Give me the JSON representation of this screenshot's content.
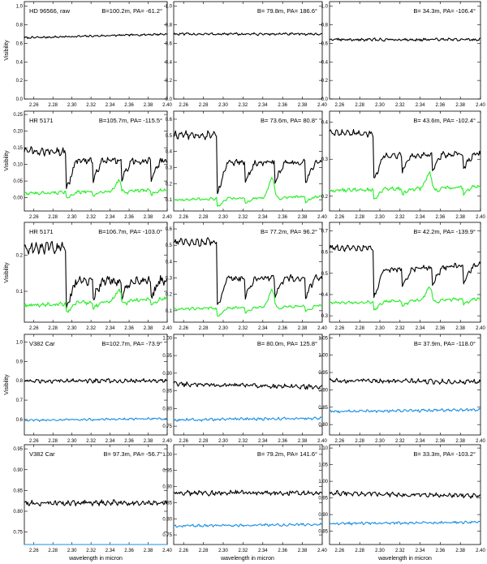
{
  "figure": {
    "xlabel": "wavelength in micron",
    "ylabel": "Visibility",
    "x_ticks": [
      "2.26",
      "2.28",
      "2.30",
      "2.32",
      "2.34",
      "2.36",
      "2.38",
      "2.40"
    ],
    "colors": {
      "raw": "#000000",
      "calibrator_green": "#22ee22",
      "calibrator_blue": "#1a8fe0"
    }
  },
  "chart_data": [
    {
      "type": "line",
      "row": 0,
      "col": 0,
      "star": "HD 96566, raw",
      "baseline": "B=100.2m, PA= -61.2°",
      "xlim": [
        2.25,
        2.4
      ],
      "ylim": [
        0,
        1.05
      ],
      "yticks": [
        0.0,
        0.2,
        0.4,
        0.6,
        0.8,
        1.0
      ],
      "series": [
        {
          "color": "#000000",
          "level": 0.68,
          "trend": 0.04,
          "noise": 0.008,
          "dips": 0
        }
      ]
    },
    {
      "type": "line",
      "row": 0,
      "col": 1,
      "star": "",
      "baseline": "B= 79.8m, PA= 186.6°",
      "xlim": [
        2.25,
        2.4
      ],
      "ylim": [
        0,
        1.05
      ],
      "yticks": [
        0.0,
        0.2,
        0.4,
        0.6,
        0.8,
        1.0
      ],
      "series": [
        {
          "color": "#000000",
          "level": 0.7,
          "trend": 0.0,
          "noise": 0.01,
          "dips": 0
        }
      ]
    },
    {
      "type": "line",
      "row": 0,
      "col": 2,
      "star": "",
      "baseline": "B= 34.3m, PA= -106.4°",
      "xlim": [
        2.25,
        2.4
      ],
      "ylim": [
        0,
        1.05
      ],
      "yticks": [
        0.0,
        0.2,
        0.4,
        0.6,
        0.8,
        1.0
      ],
      "series": [
        {
          "color": "#000000",
          "level": 0.64,
          "trend": 0.0,
          "noise": 0.012,
          "dips": 0
        }
      ]
    },
    {
      "type": "line",
      "row": 1,
      "col": 0,
      "star": "HR 5171",
      "baseline": "B=105.7m, PA= -115.5°",
      "xlim": [
        2.25,
        2.4
      ],
      "ylim": [
        -0.04,
        0.26
      ],
      "yticks": [
        0.0,
        0.05,
        0.1,
        0.15,
        0.2,
        0.25
      ],
      "series": [
        {
          "color": "#000000",
          "level": 0.11,
          "trend": 0.0,
          "noise": 0.008,
          "dips": 1,
          "depth": 0.07,
          "pre": 0.14
        },
        {
          "color": "#22ee22",
          "level": 0.018,
          "trend": 0.01,
          "noise": 0.004,
          "dips": 1,
          "depth": 0.015,
          "bump": 0.03
        }
      ]
    },
    {
      "type": "line",
      "row": 1,
      "col": 1,
      "star": "",
      "baseline": "B= 73.6m, PA= 80.8°",
      "xlim": [
        2.25,
        2.4
      ],
      "ylim": [
        0.03,
        0.65
      ],
      "yticks": [
        0.1,
        0.2,
        0.3,
        0.4,
        0.5,
        0.6
      ],
      "series": [
        {
          "color": "#000000",
          "level": 0.33,
          "trend": 0.0,
          "noise": 0.015,
          "dips": 1,
          "depth": 0.15,
          "pre": 0.5
        },
        {
          "color": "#22ee22",
          "level": 0.11,
          "trend": 0.02,
          "noise": 0.006,
          "dips": 1,
          "depth": 0.04,
          "bump": 0.12
        }
      ]
    },
    {
      "type": "line",
      "row": 1,
      "col": 2,
      "star": "",
      "baseline": "B= 43.6m, PA= -102.4°",
      "xlim": [
        2.25,
        2.4
      ],
      "ylim": [
        0.16,
        0.43
      ],
      "yticks": [
        0.2,
        0.3,
        0.4
      ],
      "series": [
        {
          "color": "#000000",
          "level": 0.31,
          "trend": 0.01,
          "noise": 0.006,
          "dips": 1,
          "depth": 0.05,
          "pre": 0.37
        },
        {
          "color": "#22ee22",
          "level": 0.22,
          "trend": 0.01,
          "noise": 0.004,
          "dips": 1,
          "depth": 0.02,
          "bump": 0.04
        }
      ]
    },
    {
      "type": "line",
      "row": 2,
      "col": 0,
      "star": "HR 5171",
      "baseline": "B=106.7m, PA= -103.0°",
      "xlim": [
        2.25,
        2.4
      ],
      "ylim": [
        0.015,
        0.29
      ],
      "yticks": [
        0.1,
        0.2
      ],
      "series": [
        {
          "color": "#000000",
          "level": 0.13,
          "trend": 0.0,
          "noise": 0.01,
          "dips": 1,
          "depth": 0.06,
          "pre": 0.22
        },
        {
          "color": "#22ee22",
          "level": 0.07,
          "trend": 0.02,
          "noise": 0.004,
          "dips": 1,
          "depth": 0.02,
          "bump": 0.03
        }
      ]
    },
    {
      "type": "line",
      "row": 2,
      "col": 1,
      "star": "",
      "baseline": "B= 77.2m, PA= 96.2°",
      "xlim": [
        2.25,
        2.4
      ],
      "ylim": [
        0.03,
        0.64
      ],
      "yticks": [
        0.1,
        0.2,
        0.3,
        0.4,
        0.5,
        0.6
      ],
      "series": [
        {
          "color": "#000000",
          "level": 0.3,
          "trend": 0.0,
          "noise": 0.015,
          "dips": 1,
          "depth": 0.14,
          "pre": 0.52
        },
        {
          "color": "#22ee22",
          "level": 0.12,
          "trend": 0.02,
          "noise": 0.006,
          "dips": 1,
          "depth": 0.04,
          "bump": 0.1
        }
      ]
    },
    {
      "type": "line",
      "row": 2,
      "col": 2,
      "star": "",
      "baseline": "B= 42.2m, PA= -139.9°",
      "xlim": [
        2.25,
        2.4
      ],
      "ylim": [
        0.27,
        0.74
      ],
      "yticks": [
        0.3,
        0.4,
        0.5,
        0.6,
        0.7
      ],
      "series": [
        {
          "color": "#000000",
          "level": 0.52,
          "trend": 0.04,
          "noise": 0.01,
          "dips": 1,
          "depth": 0.1,
          "pre": 0.62
        },
        {
          "color": "#22ee22",
          "level": 0.37,
          "trend": 0.02,
          "noise": 0.005,
          "dips": 1,
          "depth": 0.03,
          "bump": 0.06
        }
      ]
    },
    {
      "type": "line",
      "row": 3,
      "col": 0,
      "star": "V382 Car",
      "baseline": "B=102.7m, PA= -73.9°",
      "xlim": [
        2.25,
        2.4
      ],
      "ylim": [
        0.52,
        1.04
      ],
      "yticks": [
        0.6,
        0.7,
        0.8,
        0.9,
        1.0
      ],
      "series": [
        {
          "color": "#000000",
          "level": 0.8,
          "trend": 0.0,
          "noise": 0.008,
          "dips": 0
        },
        {
          "color": "#1a8fe0",
          "level": 0.6,
          "trend": 0.01,
          "noise": 0.004,
          "dips": 0
        }
      ]
    },
    {
      "type": "line",
      "row": 3,
      "col": 1,
      "star": "",
      "baseline": "B= 80.0m, PA= 125.8°",
      "xlim": [
        2.25,
        2.4
      ],
      "ylim": [
        0.725,
        1.01
      ],
      "yticks": [
        0.75,
        0.8,
        0.85,
        0.9,
        0.95,
        1.0
      ],
      "series": [
        {
          "color": "#000000",
          "level": 0.865,
          "trend": -0.01,
          "noise": 0.005,
          "dips": 0
        },
        {
          "color": "#1a8fe0",
          "level": 0.77,
          "trend": 0.005,
          "noise": 0.003,
          "dips": 0
        }
      ]
    },
    {
      "type": "line",
      "row": 3,
      "col": 2,
      "star": "",
      "baseline": "B= 37.9m, PA= -118.0°",
      "xlim": [
        2.25,
        2.4
      ],
      "ylim": [
        0.77,
        1.06
      ],
      "yticks": [
        0.8,
        0.85,
        0.9,
        0.95,
        1.0,
        1.05
      ],
      "series": [
        {
          "color": "#000000",
          "level": 0.925,
          "trend": -0.005,
          "noise": 0.005,
          "dips": 0
        },
        {
          "color": "#1a8fe0",
          "level": 0.84,
          "trend": 0.005,
          "noise": 0.003,
          "dips": 0
        }
      ]
    },
    {
      "type": "line",
      "row": 4,
      "col": 0,
      "star": "V382 Car",
      "baseline": "B= 97.3m, PA= -56.7°",
      "xlim": [
        2.25,
        2.4
      ],
      "ylim": [
        0.72,
        0.96
      ],
      "yticks": [
        0.75,
        0.8,
        0.85,
        0.9,
        0.95
      ],
      "series": [
        {
          "color": "#000000",
          "level": 0.82,
          "trend": 0.0,
          "noise": 0.005,
          "dips": 0
        },
        {
          "color": "#1a8fe0",
          "level": 0.715,
          "trend": 0.005,
          "noise": 0.002,
          "dips": 0
        }
      ]
    },
    {
      "type": "line",
      "row": 4,
      "col": 1,
      "star": "",
      "baseline": "B= 79.2m, PA= 141.6°",
      "xlim": [
        2.25,
        2.4
      ],
      "ylim": [
        0.72,
        1.03
      ],
      "yticks": [
        0.75,
        0.8,
        0.85,
        0.9,
        0.95,
        1.0
      ],
      "series": [
        {
          "color": "#000000",
          "level": 0.88,
          "trend": 0.0,
          "noise": 0.006,
          "dips": 0
        },
        {
          "color": "#1a8fe0",
          "level": 0.78,
          "trend": 0.005,
          "noise": 0.003,
          "dips": 0
        }
      ]
    },
    {
      "type": "line",
      "row": 4,
      "col": 2,
      "star": "",
      "baseline": "B= 33.3m, PA= -103.2°",
      "xlim": [
        2.25,
        2.4
      ],
      "ylim": [
        0.81,
        1.11
      ],
      "yticks": [
        0.85,
        0.9,
        0.95,
        1.0,
        1.05,
        1.1
      ],
      "series": [
        {
          "color": "#000000",
          "level": 0.96,
          "trend": -0.01,
          "noise": 0.005,
          "dips": 0
        },
        {
          "color": "#1a8fe0",
          "level": 0.875,
          "trend": 0.005,
          "noise": 0.003,
          "dips": 0
        }
      ]
    }
  ]
}
